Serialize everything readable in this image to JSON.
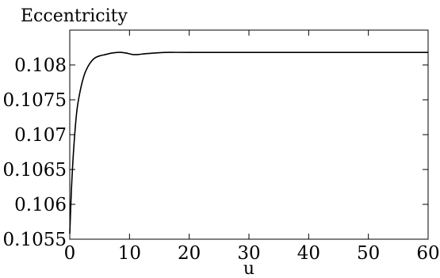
{
  "chart_data": {
    "type": "line",
    "title": "Eccentricity",
    "xlabel": "u",
    "ylabel": "",
    "xlim": [
      0,
      60
    ],
    "ylim": [
      0.1055,
      0.1085
    ],
    "xticks": [
      0,
      10,
      20,
      30,
      40,
      50,
      60
    ],
    "xtick_labels": [
      "0",
      "10",
      "20",
      "30",
      "40",
      "50",
      "60"
    ],
    "yticks": [
      0.1055,
      0.106,
      0.1065,
      0.107,
      0.1075,
      0.108
    ],
    "ytick_labels": [
      "0.1055",
      "0.106",
      "0.1065",
      "0.107",
      "0.1075",
      "0.108"
    ],
    "grid": false,
    "series": [
      {
        "color": "#000000",
        "x": [
          0,
          0.3,
          0.7,
          1.2,
          1.8,
          2.4,
          3.0,
          3.6,
          4.2,
          5.0,
          6.0,
          7.0,
          8.0,
          8.7,
          9.5,
          10.5,
          11.5,
          12.5,
          14.0,
          16.0,
          20.0,
          30.0,
          40.0,
          50.0,
          60.0
        ],
        "y": [
          0.10558,
          0.10625,
          0.10685,
          0.10735,
          0.10765,
          0.10785,
          0.10797,
          0.10805,
          0.1081,
          0.10813,
          0.10815,
          0.10817,
          0.10818,
          0.10818,
          0.10817,
          0.10815,
          0.10815,
          0.10816,
          0.10817,
          0.10818,
          0.10818,
          0.10818,
          0.10818,
          0.10818,
          0.10818
        ]
      }
    ]
  }
}
